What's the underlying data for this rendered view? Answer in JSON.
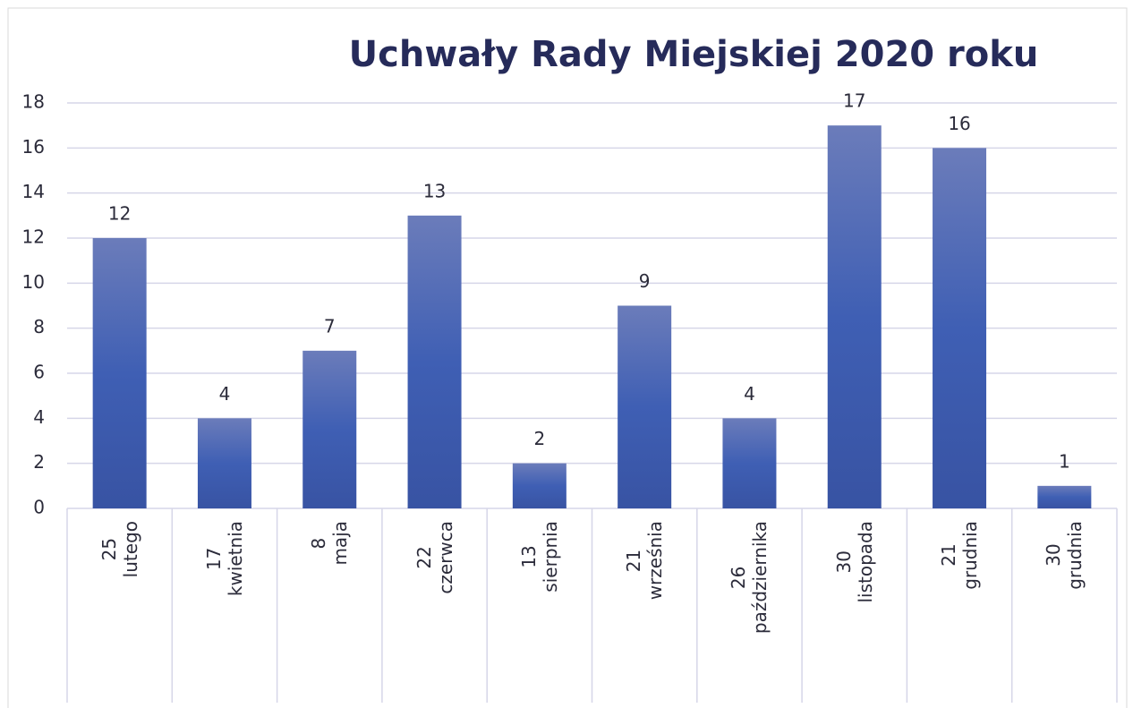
{
  "chart_data": {
    "type": "bar",
    "title": "Uchwały Rady Miejskiej 2020 roku",
    "categories": [
      "25 lutego",
      "17 kwietnia",
      "8 maja",
      "22 czerwca",
      "13 sierpnia",
      "21 września",
      "26 października",
      "30 listopada",
      "21 grudnia",
      "30 grudnia"
    ],
    "values": [
      12,
      4,
      7,
      13,
      2,
      9,
      4,
      17,
      16,
      1
    ],
    "color": "#3f5db0",
    "ylim": [
      0,
      18
    ],
    "yticks": [
      0,
      2,
      4,
      6,
      8,
      10,
      12,
      14,
      16,
      18
    ],
    "grid": true
  }
}
